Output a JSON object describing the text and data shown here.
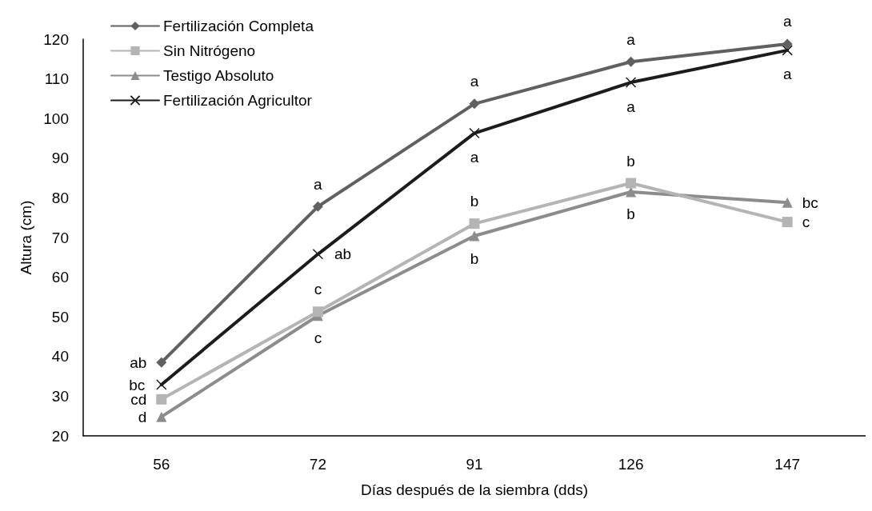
{
  "chart_data": {
    "type": "line",
    "xlabel": "Días después de la siembra (dds)",
    "ylabel": "Altura (cm)",
    "categories": [
      "56",
      "72",
      "91",
      "126",
      "147"
    ],
    "ylim": [
      20,
      120
    ],
    "yticks": [
      20,
      30,
      40,
      50,
      60,
      70,
      80,
      90,
      100,
      110,
      120
    ],
    "grid": false,
    "legend": "top left",
    "line_style": "solid",
    "series": [
      {
        "name": "Fertilización Completa",
        "color": "#606060",
        "marker": "diamond",
        "values": [
          38.5,
          77.8,
          103.7,
          114.3,
          118.8
        ],
        "value_labels": [
          "ab",
          "a",
          "a",
          "a",
          "a"
        ]
      },
      {
        "name": "Sin Nitrógeno",
        "color": "#b4b4b4",
        "marker": "square",
        "values": [
          29.2,
          51.3,
          73.5,
          83.7,
          73.9
        ],
        "value_labels": [
          "cd",
          "c",
          "b",
          "b",
          "c"
        ]
      },
      {
        "name": "Testigo Absoluto",
        "color": "#8c8c8c",
        "marker": "triangle",
        "values": [
          24.8,
          50.3,
          70.4,
          81.5,
          78.8
        ],
        "value_labels": [
          "d",
          "c",
          "b",
          "b",
          "bc"
        ]
      },
      {
        "name": "Fertilización Agricultor",
        "color": "#1c1c1c",
        "marker": "cross",
        "values": [
          32.9,
          65.8,
          96.3,
          109.1,
          117.2
        ],
        "value_labels": [
          "bc",
          "ab",
          "a",
          "a",
          "a"
        ]
      }
    ]
  }
}
